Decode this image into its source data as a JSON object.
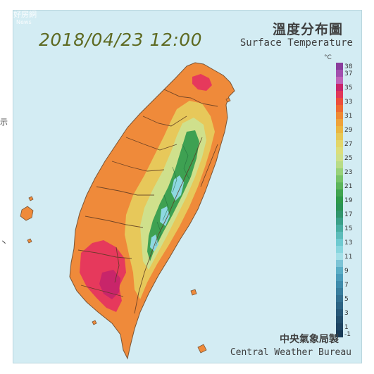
{
  "map": {
    "date_time": "2018/04/23 12:00",
    "title_zh": "溫度分布圖",
    "title_en": "Surface Temperature",
    "unit": "°C",
    "credit_zh": "中央氣象局製",
    "credit_en": "Central Weather Bureau",
    "watermark": "好房網",
    "watermark_en": "News"
  },
  "legend": {
    "items": [
      {
        "label": "38",
        "color": "#8a3d9c"
      },
      {
        "label": "37",
        "color": "#a24fae"
      },
      {
        "label": "",
        "color": "#c064b8"
      },
      {
        "label": "35",
        "color": "#c8256a"
      },
      {
        "label": "",
        "color": "#e0385a"
      },
      {
        "label": "33",
        "color": "#ec4e3c"
      },
      {
        "label": "",
        "color": "#ee6a32"
      },
      {
        "label": "31",
        "color": "#ee8a34"
      },
      {
        "label": "",
        "color": "#eea23a"
      },
      {
        "label": "29",
        "color": "#eab642"
      },
      {
        "label": "",
        "color": "#e6c858"
      },
      {
        "label": "27",
        "color": "#e2d66a"
      },
      {
        "label": "",
        "color": "#dcde7c"
      },
      {
        "label": "25",
        "color": "#cee08a"
      },
      {
        "label": "",
        "color": "#b8dc88"
      },
      {
        "label": "23",
        "color": "#98d27a"
      },
      {
        "label": "",
        "color": "#78c46a"
      },
      {
        "label": "21",
        "color": "#5cb55c"
      },
      {
        "label": "",
        "color": "#40a450"
      },
      {
        "label": "19",
        "color": "#2e9a4a"
      },
      {
        "label": "",
        "color": "#2a9456"
      },
      {
        "label": "17",
        "color": "#30956c"
      },
      {
        "label": "",
        "color": "#3aa088"
      },
      {
        "label": "15",
        "color": "#48aea2"
      },
      {
        "label": "",
        "color": "#5cbcba"
      },
      {
        "label": "13",
        "color": "#6ecad0"
      },
      {
        "label": "",
        "color": "#88d6de"
      },
      {
        "label": "11",
        "color": "#a4e0e8"
      },
      {
        "label": "",
        "color": "#7cc4d6"
      },
      {
        "label": "9",
        "color": "#5aaec6"
      },
      {
        "label": "",
        "color": "#4a9cba"
      },
      {
        "label": "7",
        "color": "#3e8cac"
      },
      {
        "label": "",
        "color": "#387e9e"
      },
      {
        "label": "5",
        "color": "#327090"
      },
      {
        "label": "",
        "color": "#2c6484"
      },
      {
        "label": "3",
        "color": "#275878"
      },
      {
        "label": "",
        "color": "#224e6c"
      },
      {
        "label": "1",
        "color": "#1d4462"
      },
      {
        "label": "-1",
        "color": "#183a56"
      }
    ]
  },
  "colors": {
    "sea": "#d3ecf3",
    "hot": "#ef8a3a",
    "very_hot": "#e6395c",
    "warm": "#e7c85a",
    "mild": "#cfe08c",
    "cool": "#3ea152",
    "cold": "#8ed8e2",
    "boundary": "#5c3a22"
  },
  "edge_marks": [
    {
      "label": "示"
    },
    {
      "label": "丶"
    }
  ]
}
